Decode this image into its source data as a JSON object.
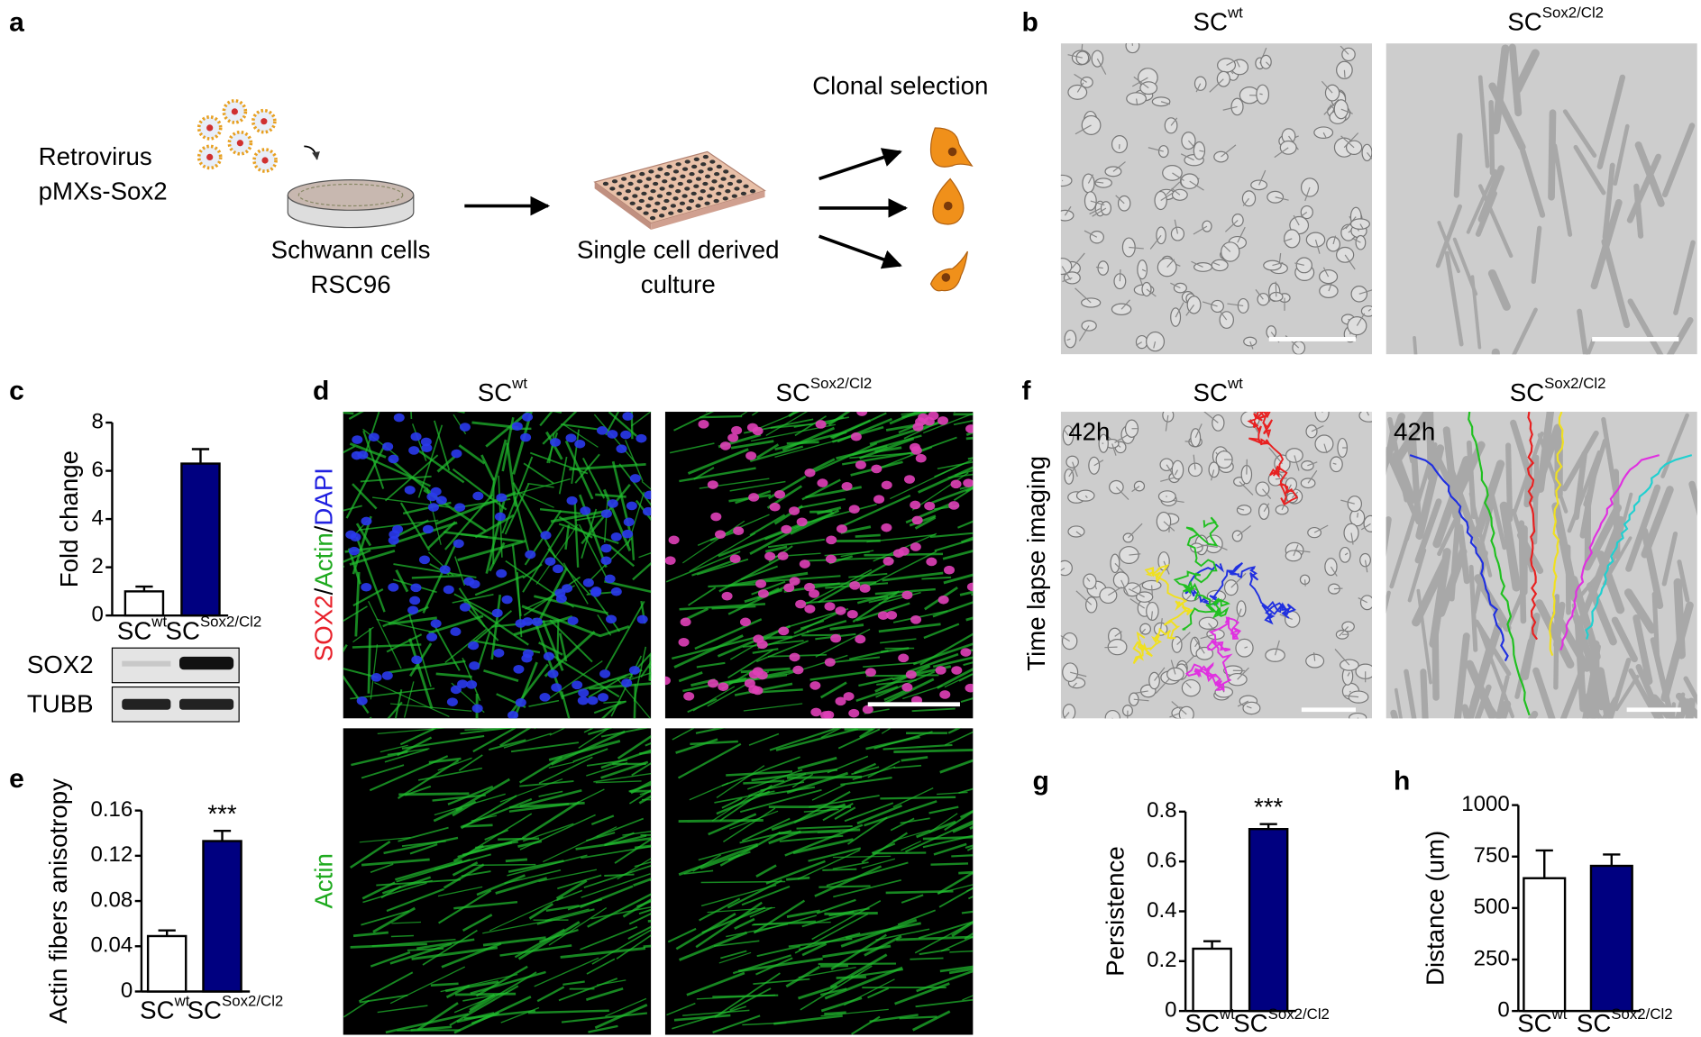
{
  "panel_labels": [
    "a",
    "b",
    "c",
    "d",
    "e",
    "f",
    "g",
    "h"
  ],
  "schematic": {
    "virus_label": [
      "Retrovirus",
      "pMXs-Sox2"
    ],
    "cells_label": [
      "Schwann cells",
      "RSC96"
    ],
    "culture_label": [
      "Single cell derived",
      "culture"
    ],
    "selection_label": "Clonal selection"
  },
  "conditions": {
    "base": [
      "SC",
      "SC"
    ],
    "superscripts": [
      "wt",
      "Sox2/Cl2"
    ]
  },
  "blot": {
    "bands": [
      "SOX2",
      "TUBB"
    ]
  },
  "panel_d": {
    "stain_label": [
      {
        "text": "SOX2",
        "color": "#e8202a"
      },
      {
        "text": "/",
        "color": "#000000"
      },
      {
        "text": "Actin",
        "color": "#1faa1f"
      },
      {
        "text": "/",
        "color": "#000000"
      },
      {
        "text": "DAPI",
        "color": "#2020e0"
      }
    ],
    "actin_label": {
      "text": "Actin",
      "color": "#1faa1f"
    }
  },
  "panel_f": {
    "side_label": "Time lapse imaging",
    "time_labels": [
      "42h",
      "42h"
    ]
  },
  "chart_data": [
    {
      "type": "bar",
      "ylabel": "Fold change",
      "categories": [
        "SC",
        "SC"
      ],
      "category_superscripts": [
        "wt",
        "Sox2/Cl2"
      ],
      "values": [
        1.0,
        6.3
      ],
      "errors": [
        0.2,
        0.6
      ],
      "colors": [
        "#ffffff",
        "#000080"
      ],
      "edgecolor": "#000000",
      "ylim": [
        0,
        8
      ],
      "yticks": [
        0,
        2,
        4,
        6,
        8
      ]
    },
    {
      "type": "bar",
      "ylabel": "Actin fibers anisotropy",
      "categories": [
        "SC",
        "SC"
      ],
      "category_superscripts": [
        "wt",
        "Sox2/Cl2"
      ],
      "values": [
        0.049,
        0.133
      ],
      "errors": [
        0.005,
        0.009
      ],
      "colors": [
        "#ffffff",
        "#000080"
      ],
      "edgecolor": "#000000",
      "ylim": [
        0,
        0.16
      ],
      "yticks": [
        0,
        0.04,
        0.08,
        0.12,
        0.16
      ],
      "annotation": "***"
    },
    {
      "type": "bar",
      "ylabel": "Persistence",
      "categories": [
        "SC",
        "SC"
      ],
      "category_superscripts": [
        "wt",
        "Sox2/Cl2"
      ],
      "values": [
        0.25,
        0.73
      ],
      "errors": [
        0.03,
        0.02
      ],
      "colors": [
        "#ffffff",
        "#000080"
      ],
      "edgecolor": "#000000",
      "ylim": [
        0,
        0.8
      ],
      "yticks": [
        0,
        0.2,
        0.4,
        0.6,
        0.8
      ],
      "annotation": "***"
    },
    {
      "type": "bar",
      "ylabel": "Distance (um)",
      "categories": [
        "SC",
        "SC"
      ],
      "category_superscripts": [
        "wt",
        "Sox2/Cl2"
      ],
      "values": [
        645,
        705
      ],
      "errors": [
        135,
        55
      ],
      "colors": [
        "#ffffff",
        "#000080"
      ],
      "edgecolor": "#000000",
      "ylim": [
        0,
        1000
      ],
      "yticks": [
        0,
        250,
        500,
        750,
        1000
      ]
    }
  ]
}
